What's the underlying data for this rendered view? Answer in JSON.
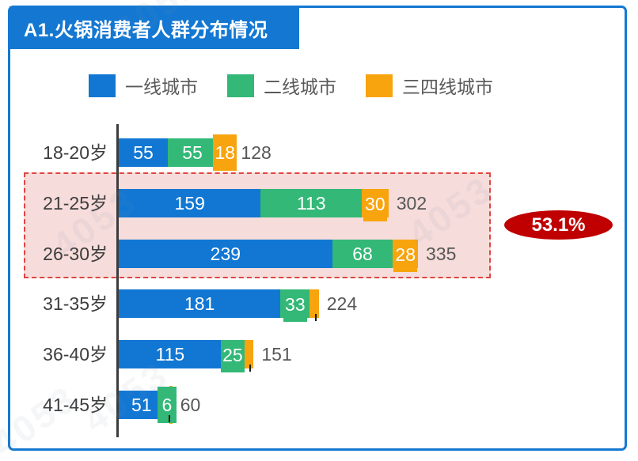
{
  "header": {
    "title": "A1.火锅消费者人群分布情况"
  },
  "legend": {
    "items": [
      {
        "label": "一线城市"
      },
      {
        "label": "二线城市"
      },
      {
        "label": "三四线城市"
      }
    ]
  },
  "annotation": {
    "value": "53.1%"
  },
  "watermark": {
    "text": "4053"
  },
  "colors": {
    "frame_blue": "#1478d2",
    "bar_blue": "#1277d3",
    "bar_green": "#33b877",
    "bar_orange": "#f8a40e",
    "highlight_border": "#df4543",
    "highlight_fill": "#f6dcda",
    "callout_red": "#c00000",
    "axis": "#3c3c3c"
  },
  "chart_data": {
    "type": "bar",
    "orientation": "horizontal",
    "stacked": true,
    "title": "A1.火锅消费者人群分布情况",
    "legend_position": "top",
    "value_axis_visible": false,
    "series": [
      {
        "name": "一线城市",
        "color": "#1277d3"
      },
      {
        "name": "二线城市",
        "color": "#33b877"
      },
      {
        "name": "三四线城市",
        "color": "#f8a40e"
      }
    ],
    "categories": [
      "18-20岁",
      "21-25岁",
      "26-30岁",
      "31-35岁",
      "36-40岁",
      "41-45岁"
    ],
    "rows": [
      {
        "label": "18-20岁",
        "values": [
          55,
          55,
          18
        ],
        "labels": [
          "55",
          "55",
          "18"
        ],
        "total": "128"
      },
      {
        "label": "21-25岁",
        "values": [
          159,
          113,
          30
        ],
        "labels": [
          "159",
          "113",
          "30"
        ],
        "total": "302"
      },
      {
        "label": "26-30岁",
        "values": [
          239,
          68,
          28
        ],
        "labels": [
          "239",
          "68",
          "28"
        ],
        "total": "335"
      },
      {
        "label": "31-35岁",
        "values": [
          181,
          33,
          10
        ],
        "labels": [
          "181",
          "33",
          ""
        ],
        "total": "224"
      },
      {
        "label": "36-40岁",
        "values": [
          115,
          25,
          11
        ],
        "labels": [
          "115",
          "25",
          ""
        ],
        "total": "151"
      },
      {
        "label": "41-45岁",
        "values": [
          51,
          6,
          3
        ],
        "labels": [
          "51",
          "6",
          ""
        ],
        "total": "60"
      }
    ],
    "highlight": {
      "rows": [
        "21-25岁",
        "26-30岁"
      ],
      "callout": "53.1%"
    }
  }
}
